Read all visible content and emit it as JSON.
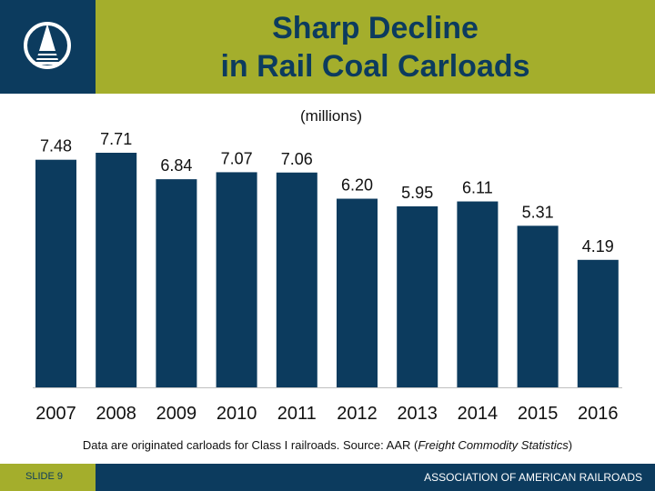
{
  "header": {
    "title_line1": "Sharp Decline",
    "title_line2": "in Rail Coal Carloads",
    "logo_icon": "aar-logo-icon"
  },
  "subtitle": "(millions)",
  "chart_data": {
    "type": "bar",
    "categories": [
      "2007",
      "2008",
      "2009",
      "2010",
      "2011",
      "2012",
      "2013",
      "2014",
      "2015",
      "2016"
    ],
    "values": [
      7.48,
      7.71,
      6.84,
      7.07,
      7.06,
      6.2,
      5.95,
      6.11,
      5.31,
      4.19
    ],
    "data_labels": [
      "7.48",
      "7.71",
      "6.84",
      "7.07",
      "7.06",
      "6.20",
      "5.95",
      "6.11",
      "5.31",
      "4.19"
    ],
    "title": "",
    "xlabel": "",
    "ylabel": "",
    "ylim": [
      0,
      7.71
    ],
    "grid": false,
    "legend": "none",
    "bar_color": "#0c3b5e"
  },
  "footnote": {
    "prefix": "Data are originated carloads for Class I railroads.   Source: AAR (",
    "italic": "Freight Commodity Statistics",
    "suffix": ")"
  },
  "footer": {
    "slide": "SLIDE 9",
    "org": "ASSOCIATION OF AMERICAN RAILROADS"
  },
  "colors": {
    "navy": "#0c3b5e",
    "olive": "#a4ae2c"
  }
}
